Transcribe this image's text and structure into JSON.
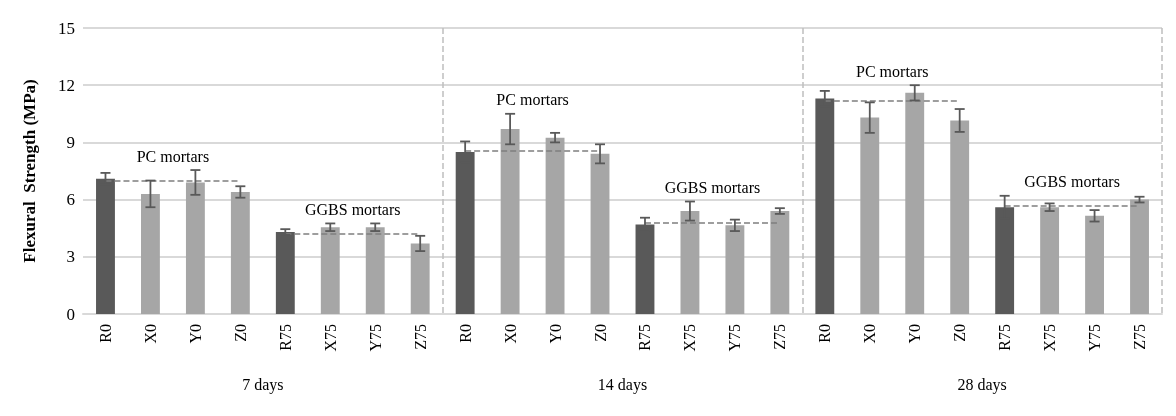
{
  "chart_data": {
    "type": "bar",
    "ylabel": "Flexural  Strength (MPa)",
    "categories": [
      "R0",
      "X0",
      "Y0",
      "Z0",
      "R75",
      "X75",
      "Y75",
      "Z75",
      "R0",
      "X0",
      "Y0",
      "Z0",
      "R75",
      "X75",
      "Y75",
      "Z75",
      "R0",
      "X0",
      "Y0",
      "Z0",
      "R75",
      "X75",
      "Y75",
      "Z75"
    ],
    "values": [
      7.1,
      6.3,
      6.9,
      6.4,
      4.3,
      4.55,
      4.55,
      3.7,
      8.5,
      9.7,
      9.25,
      8.4,
      4.7,
      5.4,
      4.65,
      5.4,
      11.3,
      10.3,
      11.6,
      10.15,
      5.6,
      5.6,
      5.15,
      6.0
    ],
    "errors": [
      0.3,
      0.7,
      0.65,
      0.3,
      0.15,
      0.2,
      0.2,
      0.4,
      0.55,
      0.8,
      0.25,
      0.5,
      0.35,
      0.5,
      0.3,
      0.15,
      0.4,
      0.8,
      0.4,
      0.6,
      0.6,
      0.2,
      0.3,
      0.15
    ],
    "colors": [
      "#595959",
      "#a6a6a6",
      "#a6a6a6",
      "#a6a6a6",
      "#595959",
      "#a6a6a6",
      "#a6a6a6",
      "#a6a6a6",
      "#595959",
      "#a6a6a6",
      "#a6a6a6",
      "#a6a6a6",
      "#595959",
      "#a6a6a6",
      "#a6a6a6",
      "#a6a6a6",
      "#595959",
      "#a6a6a6",
      "#a6a6a6",
      "#a6a6a6",
      "#595959",
      "#a6a6a6",
      "#a6a6a6",
      "#a6a6a6"
    ],
    "ylim": [
      0,
      15
    ],
    "yticks": [
      0,
      3,
      6,
      9,
      12,
      15
    ],
    "grid": "y",
    "annotations": [
      "7 days",
      "14 days",
      "28 days"
    ],
    "ref_lines": [
      {
        "axis": "y",
        "value": 7.0,
        "label": "PC mortars",
        "color": "#7f7f7f",
        "line_style": "dashed"
      },
      {
        "axis": "y",
        "value": 4.2,
        "label": "GGBS mortars",
        "color": "#7f7f7f",
        "line_style": "dashed"
      },
      {
        "axis": "y",
        "value": 8.55,
        "label": "PC mortars",
        "color": "#7f7f7f",
        "line_style": "dashed"
      },
      {
        "axis": "y",
        "value": 4.8,
        "label": "GGBS mortars",
        "color": "#7f7f7f",
        "line_style": "dashed"
      },
      {
        "axis": "y",
        "value": 11.2,
        "label": "PC mortars",
        "color": "#7f7f7f",
        "line_style": "dashed"
      },
      {
        "axis": "y",
        "value": 5.7,
        "label": "GGBS mortars",
        "color": "#7f7f7f",
        "line_style": "dashed"
      }
    ]
  }
}
